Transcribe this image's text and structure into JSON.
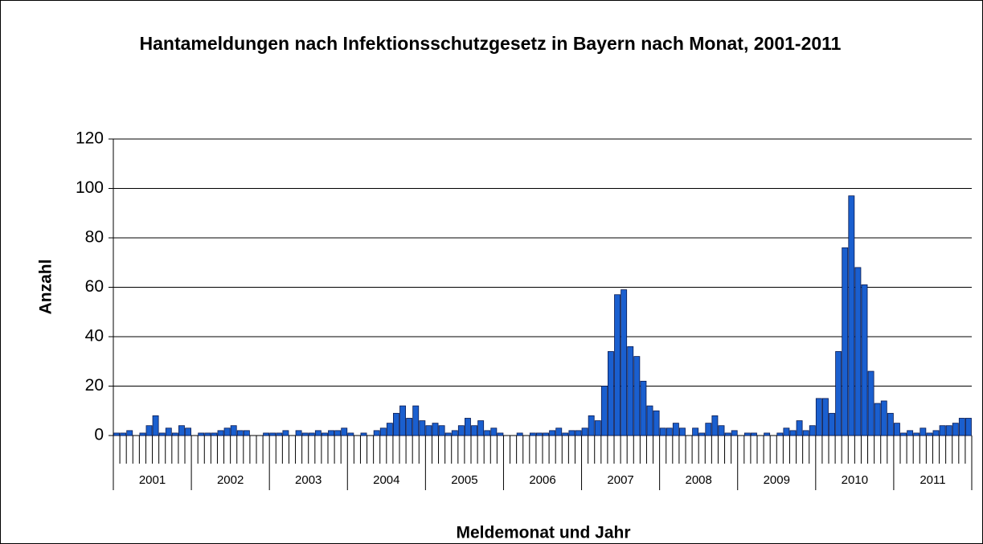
{
  "chart_data": {
    "type": "bar",
    "title": "Hantameldungen nach Infektionsschutzgesetz in Bayern nach Monat, 2001-2011",
    "y_label": "Anzahl",
    "x_label": "Meldemonat und Jahr",
    "year_groups": [
      "2001",
      "2002",
      "2003",
      "2004",
      "2005",
      "2006",
      "2007",
      "2008",
      "2009",
      "2010",
      "2011"
    ],
    "categories": [
      null,
      null,
      null,
      null,
      null,
      null,
      null,
      null,
      null,
      null,
      null,
      null,
      null,
      null,
      null,
      null,
      null,
      null,
      null,
      null,
      null,
      null,
      null,
      null,
      null,
      null,
      null,
      null,
      null,
      null,
      null,
      null,
      null,
      null,
      null,
      null,
      null,
      null,
      null,
      null,
      null,
      null,
      null,
      null,
      null,
      null,
      null,
      null,
      null,
      null,
      null,
      null,
      null,
      null,
      null,
      null,
      null,
      null,
      null,
      null,
      null,
      null,
      null,
      null,
      null,
      null,
      null,
      null,
      null,
      null,
      null,
      null,
      null,
      null,
      null,
      null,
      null,
      null,
      null,
      null,
      null,
      null,
      null,
      null,
      null,
      null,
      null,
      null,
      null,
      null,
      null,
      null,
      null,
      null,
      null,
      null,
      null,
      null,
      null,
      null,
      null,
      null,
      null,
      null,
      null,
      null,
      null,
      null,
      null,
      null,
      null,
      null,
      null,
      null,
      null,
      null,
      null,
      null,
      null,
      null,
      null,
      null,
      null,
      null,
      null,
      null,
      null,
      null,
      null,
      null,
      null,
      null
    ],
    "values": [
      1,
      1,
      2,
      0,
      1,
      4,
      8,
      1,
      3,
      1,
      4,
      3,
      0,
      1,
      1,
      1,
      2,
      3,
      4,
      2,
      2,
      0,
      0,
      1,
      1,
      1,
      2,
      0,
      2,
      1,
      1,
      2,
      1,
      2,
      2,
      3,
      1,
      0,
      1,
      0,
      2,
      3,
      5,
      9,
      12,
      7,
      12,
      6,
      4,
      5,
      4,
      1,
      2,
      4,
      7,
      4,
      6,
      2,
      3,
      1,
      0,
      0,
      1,
      0,
      1,
      1,
      1,
      2,
      3,
      1,
      2,
      2,
      3,
      8,
      6,
      20,
      34,
      57,
      59,
      36,
      32,
      22,
      12,
      10,
      3,
      3,
      5,
      3,
      0,
      3,
      1,
      5,
      8,
      4,
      1,
      2,
      0,
      1,
      1,
      0,
      1,
      0,
      1,
      3,
      2,
      6,
      2,
      4,
      15,
      15,
      9,
      34,
      76,
      97,
      68,
      61,
      26,
      13,
      14,
      9,
      5,
      1,
      2,
      1,
      3,
      1,
      2,
      4,
      4,
      5,
      7,
      7
    ],
    "color": "#1a5fcf",
    "ylim": [
      0,
      120
    ],
    "yticks": [
      0,
      20,
      40,
      60,
      80,
      100,
      120
    ],
    "grid": true
  }
}
